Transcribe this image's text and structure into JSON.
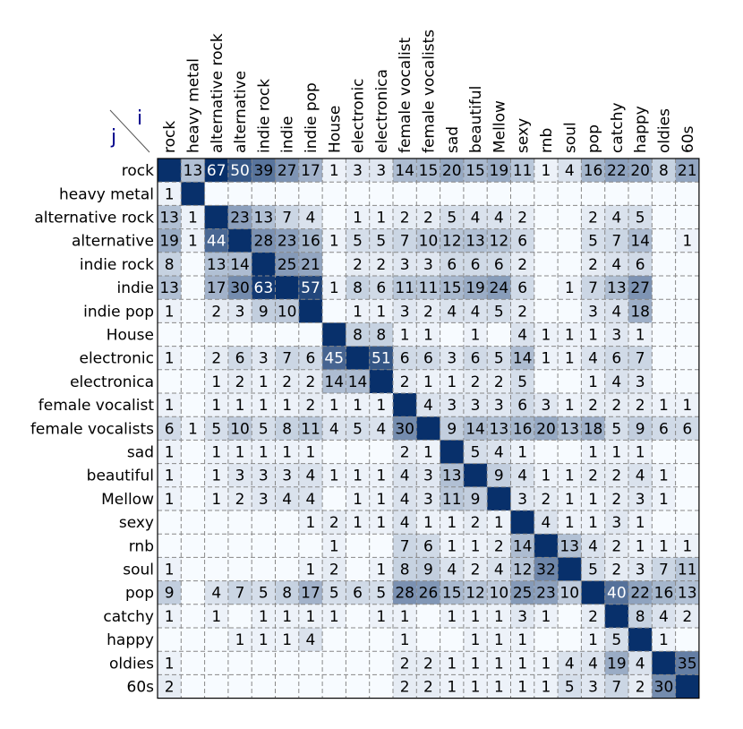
{
  "chart_data": {
    "type": "heatmap",
    "title": "",
    "xlabel": "i",
    "ylabel": "j",
    "labels": [
      "rock",
      "heavy metal",
      "alternative rock",
      "alternative",
      "indie rock",
      "indie",
      "indie pop",
      "House",
      "electronic",
      "electronica",
      "female vocalist",
      "female vocalists",
      "sad",
      "beautiful",
      "Mellow",
      "sexy",
      "rnb",
      "soul",
      "pop",
      "catchy",
      "happy",
      "oldies",
      "60s"
    ],
    "max_value": 67,
    "diagonal": "filled",
    "matrix": [
      [
        null,
        13,
        67,
        50,
        39,
        27,
        17,
        1,
        3,
        3,
        14,
        15,
        20,
        15,
        19,
        11,
        1,
        4,
        16,
        22,
        20,
        8,
        21
      ],
      [
        1,
        null,
        null,
        null,
        null,
        null,
        null,
        null,
        null,
        null,
        null,
        null,
        null,
        null,
        null,
        null,
        null,
        null,
        null,
        null,
        null,
        null,
        null
      ],
      [
        13,
        1,
        null,
        23,
        13,
        7,
        4,
        null,
        1,
        1,
        2,
        2,
        5,
        4,
        4,
        2,
        null,
        null,
        2,
        4,
        5,
        null,
        null
      ],
      [
        19,
        1,
        44,
        null,
        28,
        23,
        16,
        1,
        5,
        5,
        7,
        10,
        12,
        13,
        12,
        6,
        null,
        null,
        5,
        7,
        14,
        null,
        1
      ],
      [
        8,
        null,
        13,
        14,
        null,
        25,
        21,
        null,
        2,
        2,
        3,
        3,
        6,
        6,
        6,
        2,
        null,
        null,
        2,
        4,
        6,
        null,
        null
      ],
      [
        13,
        null,
        17,
        30,
        63,
        null,
        57,
        1,
        8,
        6,
        11,
        11,
        15,
        19,
        24,
        6,
        null,
        1,
        7,
        13,
        27,
        null,
        null
      ],
      [
        1,
        null,
        2,
        3,
        9,
        10,
        null,
        null,
        1,
        1,
        3,
        2,
        4,
        4,
        5,
        2,
        null,
        null,
        3,
        4,
        18,
        null,
        null
      ],
      [
        null,
        null,
        null,
        null,
        null,
        null,
        null,
        null,
        8,
        8,
        1,
        1,
        null,
        1,
        null,
        4,
        1,
        1,
        1,
        3,
        1,
        null,
        null
      ],
      [
        1,
        null,
        2,
        6,
        3,
        7,
        6,
        45,
        null,
        51,
        6,
        6,
        3,
        6,
        5,
        14,
        1,
        1,
        4,
        6,
        7,
        null,
        null
      ],
      [
        null,
        null,
        1,
        2,
        1,
        2,
        2,
        14,
        14,
        null,
        2,
        1,
        1,
        2,
        2,
        5,
        null,
        null,
        1,
        4,
        3,
        null,
        null
      ],
      [
        1,
        null,
        1,
        1,
        1,
        1,
        2,
        1,
        1,
        1,
        null,
        4,
        3,
        3,
        3,
        6,
        3,
        1,
        2,
        2,
        2,
        1,
        1
      ],
      [
        6,
        1,
        5,
        10,
        5,
        8,
        11,
        4,
        5,
        4,
        30,
        null,
        9,
        14,
        13,
        16,
        20,
        13,
        18,
        5,
        9,
        6,
        6
      ],
      [
        1,
        null,
        1,
        1,
        1,
        1,
        1,
        null,
        null,
        null,
        2,
        1,
        null,
        5,
        4,
        1,
        null,
        null,
        1,
        1,
        1,
        null,
        null
      ],
      [
        1,
        null,
        1,
        3,
        3,
        3,
        4,
        1,
        1,
        1,
        4,
        3,
        13,
        null,
        9,
        4,
        1,
        1,
        2,
        2,
        4,
        1,
        null
      ],
      [
        1,
        null,
        1,
        2,
        3,
        4,
        4,
        null,
        1,
        1,
        4,
        3,
        11,
        9,
        null,
        3,
        2,
        1,
        1,
        2,
        3,
        1,
        null
      ],
      [
        null,
        null,
        null,
        null,
        null,
        null,
        1,
        2,
        1,
        1,
        4,
        1,
        1,
        2,
        1,
        null,
        4,
        1,
        1,
        3,
        1,
        null,
        null
      ],
      [
        null,
        null,
        null,
        null,
        null,
        null,
        null,
        1,
        null,
        null,
        7,
        6,
        1,
        1,
        2,
        14,
        null,
        13,
        4,
        2,
        1,
        1,
        1
      ],
      [
        1,
        null,
        null,
        null,
        null,
        null,
        1,
        2,
        null,
        1,
        8,
        9,
        4,
        2,
        4,
        12,
        32,
        null,
        5,
        2,
        3,
        7,
        11
      ],
      [
        9,
        null,
        4,
        7,
        5,
        8,
        17,
        5,
        6,
        5,
        28,
        26,
        15,
        12,
        10,
        25,
        23,
        10,
        null,
        40,
        22,
        16,
        13
      ],
      [
        1,
        null,
        1,
        null,
        1,
        1,
        1,
        1,
        null,
        1,
        1,
        null,
        1,
        1,
        1,
        3,
        1,
        null,
        2,
        null,
        8,
        4,
        2
      ],
      [
        null,
        null,
        null,
        1,
        1,
        1,
        4,
        null,
        null,
        null,
        1,
        null,
        null,
        1,
        1,
        1,
        null,
        null,
        1,
        5,
        null,
        1,
        null
      ],
      [
        1,
        null,
        null,
        null,
        null,
        null,
        null,
        null,
        null,
        null,
        2,
        2,
        1,
        1,
        1,
        1,
        1,
        4,
        4,
        19,
        4,
        null,
        35
      ],
      [
        2,
        null,
        null,
        null,
        null,
        null,
        null,
        null,
        null,
        null,
        2,
        2,
        1,
        1,
        1,
        1,
        1,
        5,
        3,
        7,
        2,
        30,
        null
      ]
    ],
    "colors": {
      "low": "#f7fbff",
      "high": "#08306b",
      "diagonal": "#08306b",
      "grid": "#888888",
      "frame": "#000000",
      "text_dark": "#000000",
      "text_light": "#ffffff",
      "axis_letter": "#00008b"
    }
  }
}
